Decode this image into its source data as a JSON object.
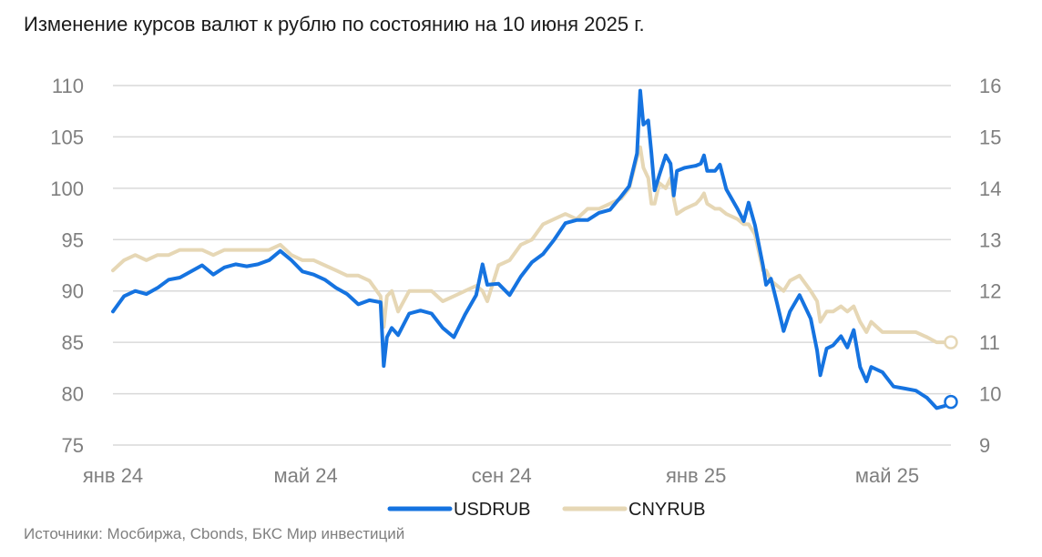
{
  "title": "Изменение курсов валют к рублю по состоянию на 10 июня 2025 г.",
  "source": "Источники: Мосбиржа, Cbonds, БКС Мир инвестиций",
  "colors": {
    "usdrub": "#1573e0",
    "cnyrub": "#e6d7b5",
    "grid": "#d9d9d9",
    "axis_text": "#7f7f7f"
  },
  "chart_data": {
    "type": "line",
    "title": "Изменение курсов валют к рублю по состоянию на 10 июня 2025 г.",
    "x_range": [
      "2024-01-01",
      "2025-06-10"
    ],
    "x_ticks": [
      {
        "date": "2024-01-01",
        "label": "янв 24"
      },
      {
        "date": "2024-05-01",
        "label": "май 24"
      },
      {
        "date": "2024-09-01",
        "label": "сен 24"
      },
      {
        "date": "2025-01-01",
        "label": "янв 25"
      },
      {
        "date": "2025-05-01",
        "label": "май 25"
      }
    ],
    "y_left": {
      "min": 75,
      "max": 110,
      "ticks": [
        110,
        105,
        100,
        95,
        90,
        85,
        80,
        75
      ]
    },
    "y_right": {
      "min": 9,
      "max": 16,
      "ticks": [
        16,
        15,
        14,
        13,
        12,
        11,
        10,
        9
      ]
    },
    "grid": true,
    "legend_position": "bottom",
    "series": [
      {
        "name": "USDRUB",
        "axis": "left",
        "color_key": "usdrub",
        "end_marker": true,
        "points": [
          [
            "2024-01-01",
            88.0
          ],
          [
            "2024-01-08",
            89.5
          ],
          [
            "2024-01-15",
            90.0
          ],
          [
            "2024-01-22",
            89.7
          ],
          [
            "2024-01-29",
            90.3
          ],
          [
            "2024-02-05",
            91.1
          ],
          [
            "2024-02-12",
            91.3
          ],
          [
            "2024-02-19",
            91.9
          ],
          [
            "2024-02-26",
            92.5
          ],
          [
            "2024-03-04",
            91.6
          ],
          [
            "2024-03-11",
            92.3
          ],
          [
            "2024-03-18",
            92.6
          ],
          [
            "2024-03-25",
            92.4
          ],
          [
            "2024-04-01",
            92.6
          ],
          [
            "2024-04-08",
            93.0
          ],
          [
            "2024-04-15",
            93.9
          ],
          [
            "2024-04-22",
            93.0
          ],
          [
            "2024-04-29",
            91.9
          ],
          [
            "2024-05-06",
            91.6
          ],
          [
            "2024-05-13",
            91.1
          ],
          [
            "2024-05-20",
            90.3
          ],
          [
            "2024-05-27",
            89.7
          ],
          [
            "2024-06-03",
            88.7
          ],
          [
            "2024-06-10",
            89.1
          ],
          [
            "2024-06-17",
            88.9
          ],
          [
            "2024-06-19",
            82.7
          ],
          [
            "2024-06-21",
            85.5
          ],
          [
            "2024-06-24",
            86.4
          ],
          [
            "2024-06-28",
            85.7
          ],
          [
            "2024-07-05",
            87.8
          ],
          [
            "2024-07-12",
            88.1
          ],
          [
            "2024-07-19",
            87.8
          ],
          [
            "2024-07-26",
            86.4
          ],
          [
            "2024-08-02",
            85.5
          ],
          [
            "2024-08-09",
            87.7
          ],
          [
            "2024-08-16",
            89.6
          ],
          [
            "2024-08-20",
            92.6
          ],
          [
            "2024-08-23",
            90.6
          ],
          [
            "2024-08-30",
            90.7
          ],
          [
            "2024-09-06",
            89.6
          ],
          [
            "2024-09-13",
            91.4
          ],
          [
            "2024-09-20",
            92.8
          ],
          [
            "2024-09-27",
            93.6
          ],
          [
            "2024-10-04",
            95.0
          ],
          [
            "2024-10-11",
            96.6
          ],
          [
            "2024-10-18",
            96.9
          ],
          [
            "2024-10-25",
            96.9
          ],
          [
            "2024-11-01",
            97.6
          ],
          [
            "2024-11-08",
            97.9
          ],
          [
            "2024-11-15",
            99.2
          ],
          [
            "2024-11-20",
            100.2
          ],
          [
            "2024-11-25",
            103.4
          ],
          [
            "2024-11-27",
            109.5
          ],
          [
            "2024-11-29",
            106.2
          ],
          [
            "2024-12-02",
            106.6
          ],
          [
            "2024-12-04",
            103.4
          ],
          [
            "2024-12-06",
            99.8
          ],
          [
            "2024-12-09",
            101.3
          ],
          [
            "2024-12-13",
            103.2
          ],
          [
            "2024-12-16",
            102.4
          ],
          [
            "2024-12-18",
            99.3
          ],
          [
            "2024-12-20",
            101.7
          ],
          [
            "2024-12-25",
            102.0
          ],
          [
            "2025-01-01",
            102.2
          ],
          [
            "2025-01-04",
            102.4
          ],
          [
            "2025-01-06",
            103.2
          ],
          [
            "2025-01-08",
            101.7
          ],
          [
            "2025-01-13",
            101.7
          ],
          [
            "2025-01-16",
            102.3
          ],
          [
            "2025-01-20",
            99.9
          ],
          [
            "2025-01-27",
            98.0
          ],
          [
            "2025-01-31",
            96.8
          ],
          [
            "2025-02-03",
            98.6
          ],
          [
            "2025-02-07",
            96.4
          ],
          [
            "2025-02-12",
            92.5
          ],
          [
            "2025-02-14",
            90.6
          ],
          [
            "2025-02-17",
            91.2
          ],
          [
            "2025-02-21",
            88.7
          ],
          [
            "2025-02-25",
            86.1
          ],
          [
            "2025-03-01",
            88.0
          ],
          [
            "2025-03-07",
            89.6
          ],
          [
            "2025-03-14",
            87.3
          ],
          [
            "2025-03-18",
            84.2
          ],
          [
            "2025-03-20",
            81.8
          ],
          [
            "2025-03-24",
            84.4
          ],
          [
            "2025-03-28",
            84.7
          ],
          [
            "2025-04-02",
            85.6
          ],
          [
            "2025-04-06",
            84.5
          ],
          [
            "2025-04-10",
            86.2
          ],
          [
            "2025-04-14",
            82.6
          ],
          [
            "2025-04-18",
            81.2
          ],
          [
            "2025-04-21",
            82.6
          ],
          [
            "2025-04-28",
            82.1
          ],
          [
            "2025-05-05",
            80.7
          ],
          [
            "2025-05-12",
            80.5
          ],
          [
            "2025-05-19",
            80.3
          ],
          [
            "2025-05-26",
            79.6
          ],
          [
            "2025-06-01",
            78.6
          ],
          [
            "2025-06-06",
            78.8
          ],
          [
            "2025-06-10",
            79.2
          ]
        ]
      },
      {
        "name": "CNYRUB",
        "axis": "right",
        "color_key": "cnyrub",
        "end_marker": true,
        "points": [
          [
            "2024-01-01",
            12.4
          ],
          [
            "2024-01-08",
            12.6
          ],
          [
            "2024-01-15",
            12.7
          ],
          [
            "2024-01-22",
            12.6
          ],
          [
            "2024-01-29",
            12.7
          ],
          [
            "2024-02-05",
            12.7
          ],
          [
            "2024-02-12",
            12.8
          ],
          [
            "2024-02-19",
            12.8
          ],
          [
            "2024-02-26",
            12.8
          ],
          [
            "2024-03-04",
            12.7
          ],
          [
            "2024-03-11",
            12.8
          ],
          [
            "2024-03-18",
            12.8
          ],
          [
            "2024-03-25",
            12.8
          ],
          [
            "2024-04-01",
            12.8
          ],
          [
            "2024-04-08",
            12.8
          ],
          [
            "2024-04-15",
            12.9
          ],
          [
            "2024-04-22",
            12.7
          ],
          [
            "2024-04-29",
            12.6
          ],
          [
            "2024-05-06",
            12.6
          ],
          [
            "2024-05-13",
            12.5
          ],
          [
            "2024-05-20",
            12.4
          ],
          [
            "2024-05-27",
            12.3
          ],
          [
            "2024-06-03",
            12.3
          ],
          [
            "2024-06-10",
            12.2
          ],
          [
            "2024-06-17",
            11.9
          ],
          [
            "2024-06-19",
            11.3
          ],
          [
            "2024-06-21",
            11.9
          ],
          [
            "2024-06-24",
            12.0
          ],
          [
            "2024-06-28",
            11.6
          ],
          [
            "2024-07-05",
            12.0
          ],
          [
            "2024-07-12",
            12.0
          ],
          [
            "2024-07-19",
            12.0
          ],
          [
            "2024-07-26",
            11.8
          ],
          [
            "2024-08-02",
            11.9
          ],
          [
            "2024-08-09",
            12.0
          ],
          [
            "2024-08-16",
            12.1
          ],
          [
            "2024-08-20",
            12.0
          ],
          [
            "2024-08-23",
            11.8
          ],
          [
            "2024-08-30",
            12.5
          ],
          [
            "2024-09-06",
            12.6
          ],
          [
            "2024-09-13",
            12.9
          ],
          [
            "2024-09-20",
            13.0
          ],
          [
            "2024-09-27",
            13.3
          ],
          [
            "2024-10-04",
            13.4
          ],
          [
            "2024-10-11",
            13.5
          ],
          [
            "2024-10-18",
            13.4
          ],
          [
            "2024-10-25",
            13.6
          ],
          [
            "2024-11-01",
            13.6
          ],
          [
            "2024-11-08",
            13.7
          ],
          [
            "2024-11-15",
            13.8
          ],
          [
            "2024-11-20",
            14.0
          ],
          [
            "2024-11-25",
            14.6
          ],
          [
            "2024-11-27",
            14.8
          ],
          [
            "2024-11-29",
            14.4
          ],
          [
            "2024-12-02",
            14.2
          ],
          [
            "2024-12-04",
            13.7
          ],
          [
            "2024-12-06",
            13.7
          ],
          [
            "2024-12-09",
            14.1
          ],
          [
            "2024-12-13",
            14.0
          ],
          [
            "2024-12-16",
            14.2
          ],
          [
            "2024-12-18",
            13.8
          ],
          [
            "2024-12-20",
            13.5
          ],
          [
            "2024-12-25",
            13.6
          ],
          [
            "2025-01-01",
            13.7
          ],
          [
            "2025-01-04",
            13.8
          ],
          [
            "2025-01-06",
            13.9
          ],
          [
            "2025-01-08",
            13.7
          ],
          [
            "2025-01-13",
            13.6
          ],
          [
            "2025-01-16",
            13.6
          ],
          [
            "2025-01-20",
            13.5
          ],
          [
            "2025-01-27",
            13.4
          ],
          [
            "2025-01-31",
            13.3
          ],
          [
            "2025-02-03",
            13.3
          ],
          [
            "2025-02-07",
            13.1
          ],
          [
            "2025-02-12",
            12.4
          ],
          [
            "2025-02-14",
            12.4
          ],
          [
            "2025-02-17",
            12.2
          ],
          [
            "2025-02-21",
            12.1
          ],
          [
            "2025-02-25",
            12.0
          ],
          [
            "2025-03-01",
            12.2
          ],
          [
            "2025-03-07",
            12.3
          ],
          [
            "2025-03-14",
            12.0
          ],
          [
            "2025-03-18",
            11.8
          ],
          [
            "2025-03-20",
            11.4
          ],
          [
            "2025-03-24",
            11.6
          ],
          [
            "2025-03-28",
            11.6
          ],
          [
            "2025-04-02",
            11.7
          ],
          [
            "2025-04-06",
            11.6
          ],
          [
            "2025-04-10",
            11.7
          ],
          [
            "2025-04-14",
            11.4
          ],
          [
            "2025-04-18",
            11.2
          ],
          [
            "2025-04-21",
            11.4
          ],
          [
            "2025-04-28",
            11.2
          ],
          [
            "2025-05-05",
            11.2
          ],
          [
            "2025-05-12",
            11.2
          ],
          [
            "2025-05-19",
            11.2
          ],
          [
            "2025-05-26",
            11.1
          ],
          [
            "2025-06-01",
            11.0
          ],
          [
            "2025-06-06",
            11.0
          ],
          [
            "2025-06-10",
            11.0
          ]
        ]
      }
    ]
  }
}
